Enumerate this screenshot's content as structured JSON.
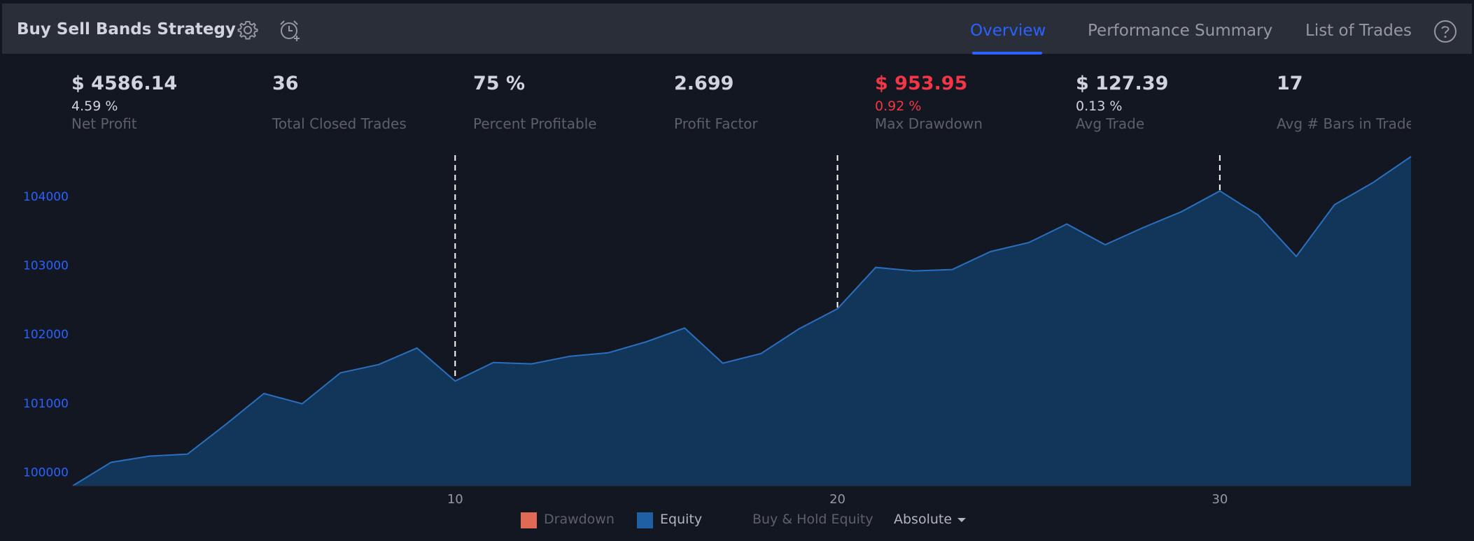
{
  "header": {
    "title": "Buy Sell Bands Strategy",
    "icons": [
      "settings-gear-icon",
      "alarm-add-icon"
    ],
    "tabs": [
      {
        "label": "Overview",
        "active": true
      },
      {
        "label": "Performance Summary",
        "active": false
      },
      {
        "label": "List of Trades",
        "active": false
      }
    ],
    "help_icon": "question-mark-icon"
  },
  "metrics": [
    {
      "value": "$ 4586.14",
      "sub": "4.59 %",
      "label": "Net Profit",
      "negative": false
    },
    {
      "value": "36",
      "sub": "",
      "label": "Total Closed Trades",
      "negative": false
    },
    {
      "value": "75 %",
      "sub": "",
      "label": "Percent Profitable",
      "negative": false
    },
    {
      "value": "2.699",
      "sub": "",
      "label": "Profit Factor",
      "negative": false
    },
    {
      "value": "$ 953.95",
      "sub": "0.92 %",
      "label": "Max Drawdown",
      "negative": true
    },
    {
      "value": "$ 127.39",
      "sub": "0.13 %",
      "label": "Avg Trade",
      "negative": false
    },
    {
      "value": "17",
      "sub": "",
      "label": "Avg # Bars in Trades",
      "negative": false
    }
  ],
  "colors": {
    "background": "#131722",
    "header_bg": "#2a2e39",
    "accent": "#2962ff",
    "negative": "#f23645",
    "equity_line": "#2a6fbf",
    "equity_fill": "#12365a",
    "drawdown_swatch": "#e06a55",
    "equity_swatch": "#1f5fa3"
  },
  "legend": {
    "items": [
      {
        "label": "Drawdown",
        "swatch": "drawdown"
      },
      {
        "label": "Equity",
        "swatch": "equity"
      },
      {
        "label": "Buy & Hold Equity",
        "swatch": ""
      }
    ],
    "mode_select": "Absolute"
  },
  "chart_data": {
    "type": "area",
    "title": "",
    "xlabel": "",
    "ylabel": "",
    "x_ticks": [
      10,
      20,
      30
    ],
    "y_ticks": [
      100000,
      101000,
      102000,
      103000,
      104000
    ],
    "xlim": [
      0,
      35
    ],
    "ylim": [
      99800,
      104600
    ],
    "vertical_markers": [
      10,
      20,
      30
    ],
    "series": [
      {
        "name": "Equity",
        "x": [
          0,
          1,
          2,
          3,
          4,
          5,
          6,
          7,
          8,
          9,
          10,
          11,
          12,
          13,
          14,
          15,
          16,
          17,
          18,
          19,
          20,
          21,
          22,
          23,
          24,
          25,
          26,
          27,
          28,
          29,
          30,
          31,
          32,
          33,
          34,
          35
        ],
        "values": [
          99800,
          100140,
          100230,
          100260,
          100690,
          101140,
          100990,
          101440,
          101560,
          101800,
          101320,
          101590,
          101570,
          101680,
          101730,
          101890,
          102090,
          101580,
          101720,
          102080,
          102370,
          102970,
          102920,
          102940,
          103200,
          103330,
          103600,
          103300,
          103550,
          103780,
          104080,
          103730,
          103130,
          103880,
          104200,
          104580
        ]
      }
    ]
  }
}
